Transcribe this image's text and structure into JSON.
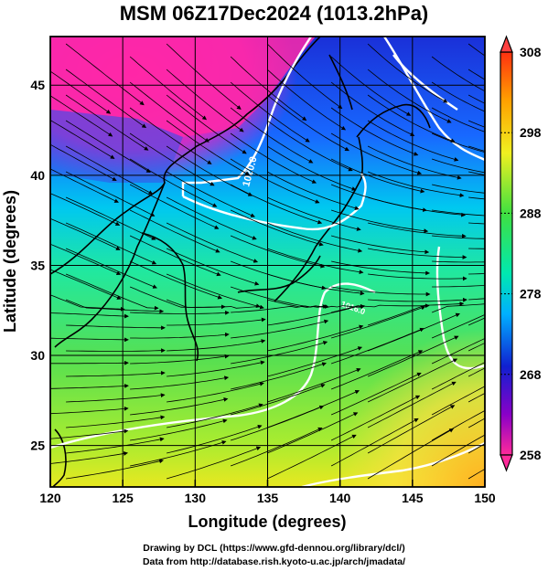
{
  "title": "MSM 06Z17Dec2024 (1013.2hPa)",
  "credits": {
    "line1": "Drawing by DCL (https://www.gfd-dennou.org/library/dcl/)",
    "line2": "Data from http://database.rish.kyoto-u.ac.jp/arch/jmadata/"
  },
  "map": {
    "xlabel": "Longitude (degrees)",
    "ylabel": "Latitude  (degrees)",
    "lon_range": [
      120,
      150
    ],
    "lat_range": [
      22.7,
      47.7
    ],
    "lon_ticks": [
      "120",
      "125",
      "130",
      "135",
      "140",
      "145",
      "150"
    ],
    "lat_ticks": [
      "25",
      "30",
      "35",
      "40",
      "45"
    ],
    "contour_labels": [
      "1020.0",
      "1016.0"
    ]
  },
  "colorbar": {
    "range": [
      258,
      308
    ],
    "ticks": [
      "308",
      "298",
      "288",
      "278",
      "268",
      "258"
    ],
    "colors": [
      "#ff2a7a",
      "#8a00c8",
      "#1020d0",
      "#00a8ff",
      "#00e8a0",
      "#40e040",
      "#f0f020",
      "#ffa000",
      "#ff5010"
    ]
  }
}
